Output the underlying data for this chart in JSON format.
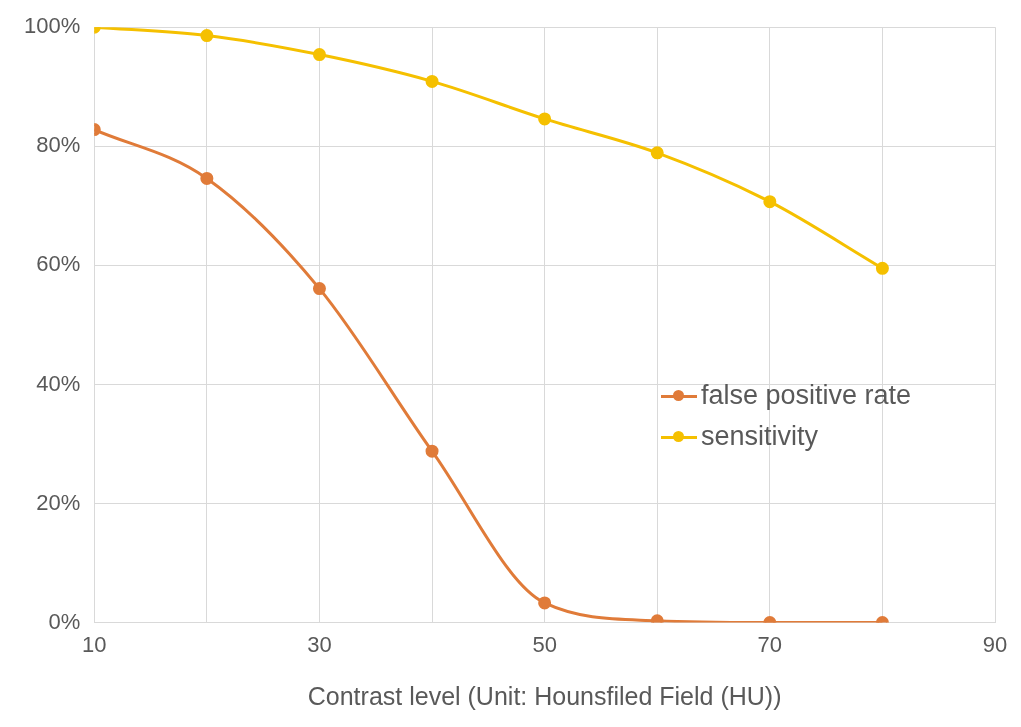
{
  "chart_data": {
    "type": "line",
    "xlabel": "Contrast level (Unit: Hounsfiled Field (HU))",
    "x": [
      10,
      20,
      30,
      40,
      50,
      60,
      70,
      80
    ],
    "series": [
      {
        "name": "false positive rate",
        "color": "#e07b39",
        "values": [
          82.8,
          74.6,
          56.1,
          28.8,
          3.3,
          0.3,
          0,
          0
        ]
      },
      {
        "name": "sensitivity",
        "color": "#f5c000",
        "values": [
          100,
          98.6,
          95.4,
          90.9,
          84.6,
          78.9,
          70.7,
          59.5
        ]
      }
    ],
    "xlim": [
      10,
      90
    ],
    "xticks": [
      10,
      {
        "value": 20,
        "label": null
      },
      30,
      {
        "value": 40,
        "label": null
      },
      50,
      {
        "value": 60,
        "label": null
      },
      70,
      {
        "value": 80,
        "label": null
      },
      90
    ],
    "ylim": [
      0,
      100
    ],
    "yticks": [
      {
        "value": 0,
        "label": "0%"
      },
      {
        "value": 20,
        "label": "20%"
      },
      {
        "value": 40,
        "label": "40%"
      },
      {
        "value": 60,
        "label": "60%"
      },
      {
        "value": 80,
        "label": "80%"
      },
      {
        "value": 100,
        "label": "100%"
      }
    ],
    "grid": true,
    "legend": "right",
    "marker": "circle",
    "line_style": "solid"
  }
}
